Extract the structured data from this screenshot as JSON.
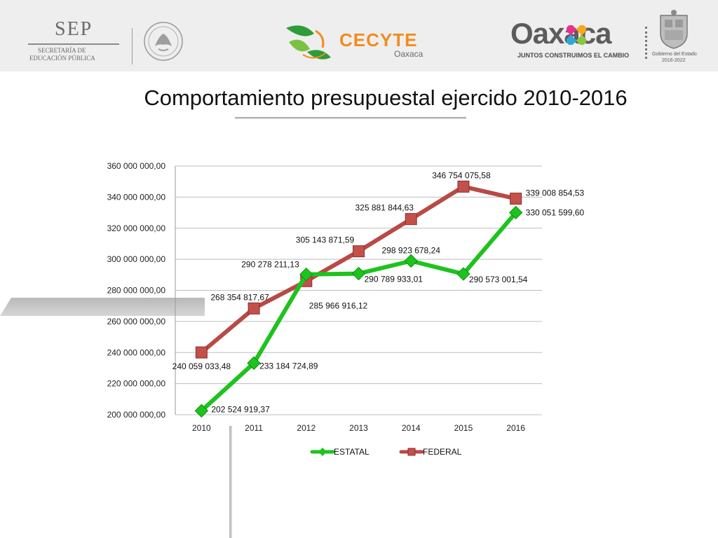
{
  "header": {
    "sep_logo": {
      "title": "SEP",
      "line1": "SECRETARÍA DE",
      "line2": "EDUCACIÓN PÚBLICA"
    },
    "cecyte_logo": {
      "name": "CECYTE",
      "subtitle": "Oaxaca"
    },
    "oaxaca_logo": {
      "name": "Oaxaca",
      "slogan": "JUNTOS CONSTRUIMOS EL CAMBIO"
    },
    "gobierno_logo": {
      "line1": "Gobierno del Estado",
      "line2": "2016-2022"
    }
  },
  "title": "Comportamiento presupuestal ejercido 2010-2016",
  "colors": {
    "estatal": "#1ec31e",
    "federal": "#b84a46",
    "grid": "#bdbdbd",
    "header_bg": "#eeeeee"
  },
  "chart_data": {
    "type": "line",
    "categories": [
      "2010",
      "2011",
      "2012",
      "2013",
      "2014",
      "2015",
      "2016"
    ],
    "ylim": [
      200000000,
      360000000
    ],
    "yticks": [
      200000000,
      220000000,
      240000000,
      260000000,
      280000000,
      300000000,
      320000000,
      340000000,
      360000000
    ],
    "ytick_labels": [
      "200 000 000,00",
      "220 000 000,00",
      "240 000 000,00",
      "260 000 000,00",
      "280 000 000,00",
      "300 000 000,00",
      "320 000 000,00",
      "340 000 000,00",
      "360 000 000,00"
    ],
    "grid": true,
    "legend_position": "bottom",
    "series": [
      {
        "name": "ESTATAL",
        "marker": "diamond",
        "values": [
          202524919.37,
          233184724.89,
          290278211.13,
          290789933.01,
          298923678.24,
          290573001.54,
          330051599.6
        ],
        "labels": [
          "202 524 919,37",
          "233 184 724,89",
          "290 278 211,13",
          "290 789 933,01",
          "298 923 678,24",
          "290 573 001,54",
          "330 051 599,60"
        ]
      },
      {
        "name": "FEDERAL",
        "marker": "square",
        "values": [
          240059033.48,
          268354817.67,
          285966916.12,
          305143871.59,
          325881844.63,
          346754075.58,
          339008854.53
        ],
        "labels": [
          "240 059 033,48",
          "268 354 817,67",
          "285 966 916,12",
          "305 143 871,59",
          "325 881 844,63",
          "346 754 075,58",
          "339 008 854,53"
        ]
      }
    ]
  }
}
